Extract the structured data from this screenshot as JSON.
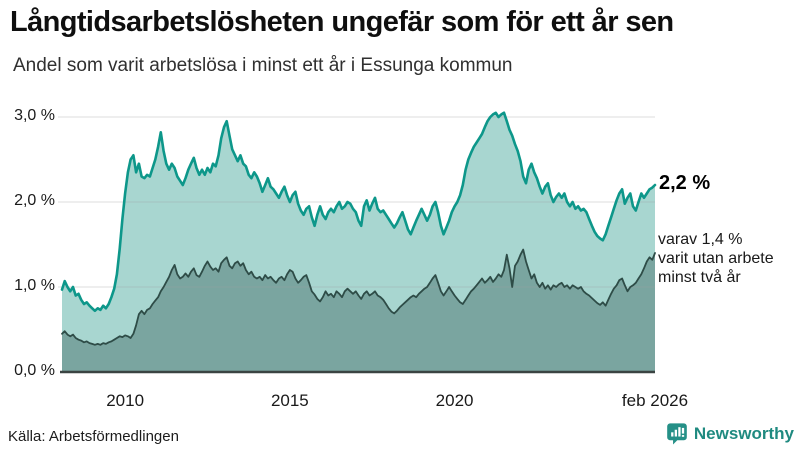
{
  "header": {
    "title": "Långtidsarbetslösheten ungefär som för ett år sen",
    "subtitle": "Andel som varit arbetslösa i minst ett år i Essunga kommun"
  },
  "annotations": {
    "latest_total_label": "2,2 %",
    "sub_lines": [
      "varav 1,4 %",
      "varit utan arbete",
      "minst två år"
    ]
  },
  "footer": {
    "source": "Källa: Arbetsförmedlingen",
    "brand": "Newsworthy",
    "brand_color": "#1f8a80"
  },
  "colors": {
    "total_line": "#0d978a",
    "total_fill": "#a8d6d0",
    "twoyear_line": "#2e4c47",
    "twoyear_fill": "#7aa5a0",
    "gridline": "#9aa0a0",
    "baseline": "#3a4442"
  },
  "chart_data": {
    "type": "area",
    "title": "Långtidsarbetslösheten ungefär som för ett år sen",
    "subtitle": "Andel som varit arbetslösa i minst ett år i Essunga kommun",
    "unit": "%",
    "x_start": "2008-02",
    "x_end": "2026-02",
    "frequency": "monthly",
    "x_ticks": [
      {
        "t": 2010.0,
        "label": "2010"
      },
      {
        "t": 2015.0,
        "label": "2015"
      },
      {
        "t": 2020.0,
        "label": "2020"
      },
      {
        "t": 2026.083,
        "label": "feb 2026"
      }
    ],
    "y_ticks": [
      {
        "v": 0,
        "label": "0,0 %"
      },
      {
        "v": 1,
        "label": "1,0 %"
      },
      {
        "v": 2,
        "label": "2,0 %"
      },
      {
        "v": 3,
        "label": "3,0 %"
      }
    ],
    "gridline_values": [
      1,
      2,
      3
    ],
    "ylim": [
      0,
      3.25
    ],
    "legend_position": "none",
    "series": [
      {
        "name": "Arbetslösa minst ett år",
        "latest_value": 2.2,
        "latest_label": "2,2 %",
        "values": [
          0.97,
          1.07,
          1.0,
          0.95,
          1.0,
          0.9,
          0.92,
          0.85,
          0.8,
          0.82,
          0.78,
          0.75,
          0.72,
          0.75,
          0.73,
          0.78,
          0.75,
          0.8,
          0.88,
          0.98,
          1.15,
          1.45,
          1.8,
          2.1,
          2.35,
          2.5,
          2.55,
          2.35,
          2.45,
          2.3,
          2.28,
          2.32,
          2.3,
          2.4,
          2.5,
          2.65,
          2.82,
          2.6,
          2.45,
          2.38,
          2.45,
          2.4,
          2.3,
          2.25,
          2.2,
          2.28,
          2.38,
          2.45,
          2.52,
          2.4,
          2.32,
          2.38,
          2.32,
          2.4,
          2.35,
          2.45,
          2.42,
          2.55,
          2.75,
          2.88,
          2.95,
          2.78,
          2.62,
          2.55,
          2.48,
          2.55,
          2.45,
          2.42,
          2.32,
          2.28,
          2.35,
          2.3,
          2.22,
          2.12,
          2.2,
          2.28,
          2.18,
          2.15,
          2.1,
          2.05,
          2.12,
          2.18,
          2.08,
          2.0,
          2.08,
          2.12,
          1.98,
          1.9,
          1.85,
          1.92,
          1.95,
          1.82,
          1.72,
          1.85,
          1.95,
          1.85,
          1.8,
          1.88,
          1.92,
          1.88,
          1.95,
          2.0,
          1.92,
          1.95,
          2.0,
          1.98,
          1.92,
          1.88,
          1.78,
          1.72,
          1.95,
          2.02,
          1.9,
          1.98,
          2.05,
          1.92,
          1.88,
          1.9,
          1.85,
          1.8,
          1.75,
          1.7,
          1.75,
          1.82,
          1.88,
          1.78,
          1.68,
          1.62,
          1.7,
          1.78,
          1.85,
          1.92,
          1.85,
          1.78,
          1.85,
          1.95,
          2.0,
          1.88,
          1.72,
          1.62,
          1.7,
          1.78,
          1.88,
          1.95,
          2.0,
          2.08,
          2.2,
          2.38,
          2.5,
          2.58,
          2.65,
          2.7,
          2.75,
          2.8,
          2.88,
          2.95,
          3.0,
          3.03,
          3.05,
          3.0,
          3.03,
          3.05,
          2.95,
          2.85,
          2.78,
          2.68,
          2.6,
          2.48,
          2.3,
          2.22,
          2.38,
          2.45,
          2.35,
          2.28,
          2.18,
          2.1,
          2.18,
          2.22,
          2.08,
          2.0,
          2.06,
          2.1,
          2.05,
          2.1,
          2.0,
          1.95,
          2.0,
          1.92,
          1.95,
          1.9,
          1.92,
          1.88,
          1.8,
          1.72,
          1.65,
          1.6,
          1.57,
          1.55,
          1.62,
          1.72,
          1.82,
          1.92,
          2.02,
          2.1,
          2.15,
          1.98,
          2.05,
          2.1,
          1.95,
          1.9,
          2.0,
          2.1,
          2.05,
          2.1,
          2.15,
          2.17,
          2.2
        ]
      },
      {
        "name": "Varav utan arbete minst två år",
        "latest_value": 1.4,
        "latest_label": "varav 1,4 % varit utan arbete minst två år",
        "values": [
          0.45,
          0.48,
          0.44,
          0.42,
          0.44,
          0.4,
          0.38,
          0.37,
          0.35,
          0.36,
          0.34,
          0.33,
          0.32,
          0.33,
          0.32,
          0.34,
          0.33,
          0.35,
          0.36,
          0.38,
          0.4,
          0.42,
          0.41,
          0.43,
          0.42,
          0.4,
          0.45,
          0.55,
          0.68,
          0.72,
          0.68,
          0.73,
          0.75,
          0.8,
          0.84,
          0.88,
          0.95,
          1.0,
          1.06,
          1.12,
          1.2,
          1.26,
          1.15,
          1.1,
          1.12,
          1.16,
          1.12,
          1.18,
          1.22,
          1.14,
          1.12,
          1.18,
          1.25,
          1.3,
          1.24,
          1.2,
          1.22,
          1.18,
          1.28,
          1.32,
          1.35,
          1.25,
          1.22,
          1.28,
          1.3,
          1.25,
          1.28,
          1.2,
          1.15,
          1.18,
          1.12,
          1.1,
          1.12,
          1.08,
          1.14,
          1.1,
          1.12,
          1.08,
          1.05,
          1.1,
          1.12,
          1.08,
          1.15,
          1.2,
          1.18,
          1.1,
          1.05,
          1.08,
          1.12,
          1.14,
          1.05,
          0.95,
          0.91,
          0.86,
          0.83,
          0.88,
          0.95,
          0.9,
          0.92,
          0.88,
          0.95,
          0.92,
          0.88,
          0.95,
          0.98,
          0.95,
          0.92,
          0.95,
          0.9,
          0.86,
          0.92,
          0.95,
          0.9,
          0.92,
          0.95,
          0.9,
          0.88,
          0.85,
          0.8,
          0.75,
          0.71,
          0.69,
          0.72,
          0.76,
          0.79,
          0.82,
          0.85,
          0.88,
          0.9,
          0.88,
          0.92,
          0.95,
          0.98,
          1.0,
          1.05,
          1.1,
          1.14,
          1.05,
          0.95,
          0.9,
          0.95,
          1.0,
          0.95,
          0.9,
          0.86,
          0.82,
          0.8,
          0.85,
          0.9,
          0.95,
          0.98,
          1.02,
          1.06,
          1.1,
          1.05,
          1.08,
          1.12,
          1.06,
          1.1,
          1.15,
          1.12,
          1.2,
          1.38,
          1.22,
          1.0,
          1.25,
          1.3,
          1.38,
          1.44,
          1.3,
          1.2,
          1.1,
          1.15,
          1.05,
          1.0,
          1.05,
          0.98,
          1.02,
          0.97,
          1.02,
          1.0,
          1.03,
          1.05,
          1.0,
          1.02,
          0.98,
          1.02,
          1.0,
          0.98,
          1.0,
          0.95,
          0.92,
          0.9,
          0.87,
          0.84,
          0.81,
          0.79,
          0.82,
          0.78,
          0.85,
          0.92,
          0.98,
          1.02,
          1.08,
          1.1,
          1.02,
          0.95,
          1.0,
          1.02,
          1.05,
          1.1,
          1.15,
          1.22,
          1.3,
          1.35,
          1.32,
          1.4
        ]
      }
    ]
  }
}
